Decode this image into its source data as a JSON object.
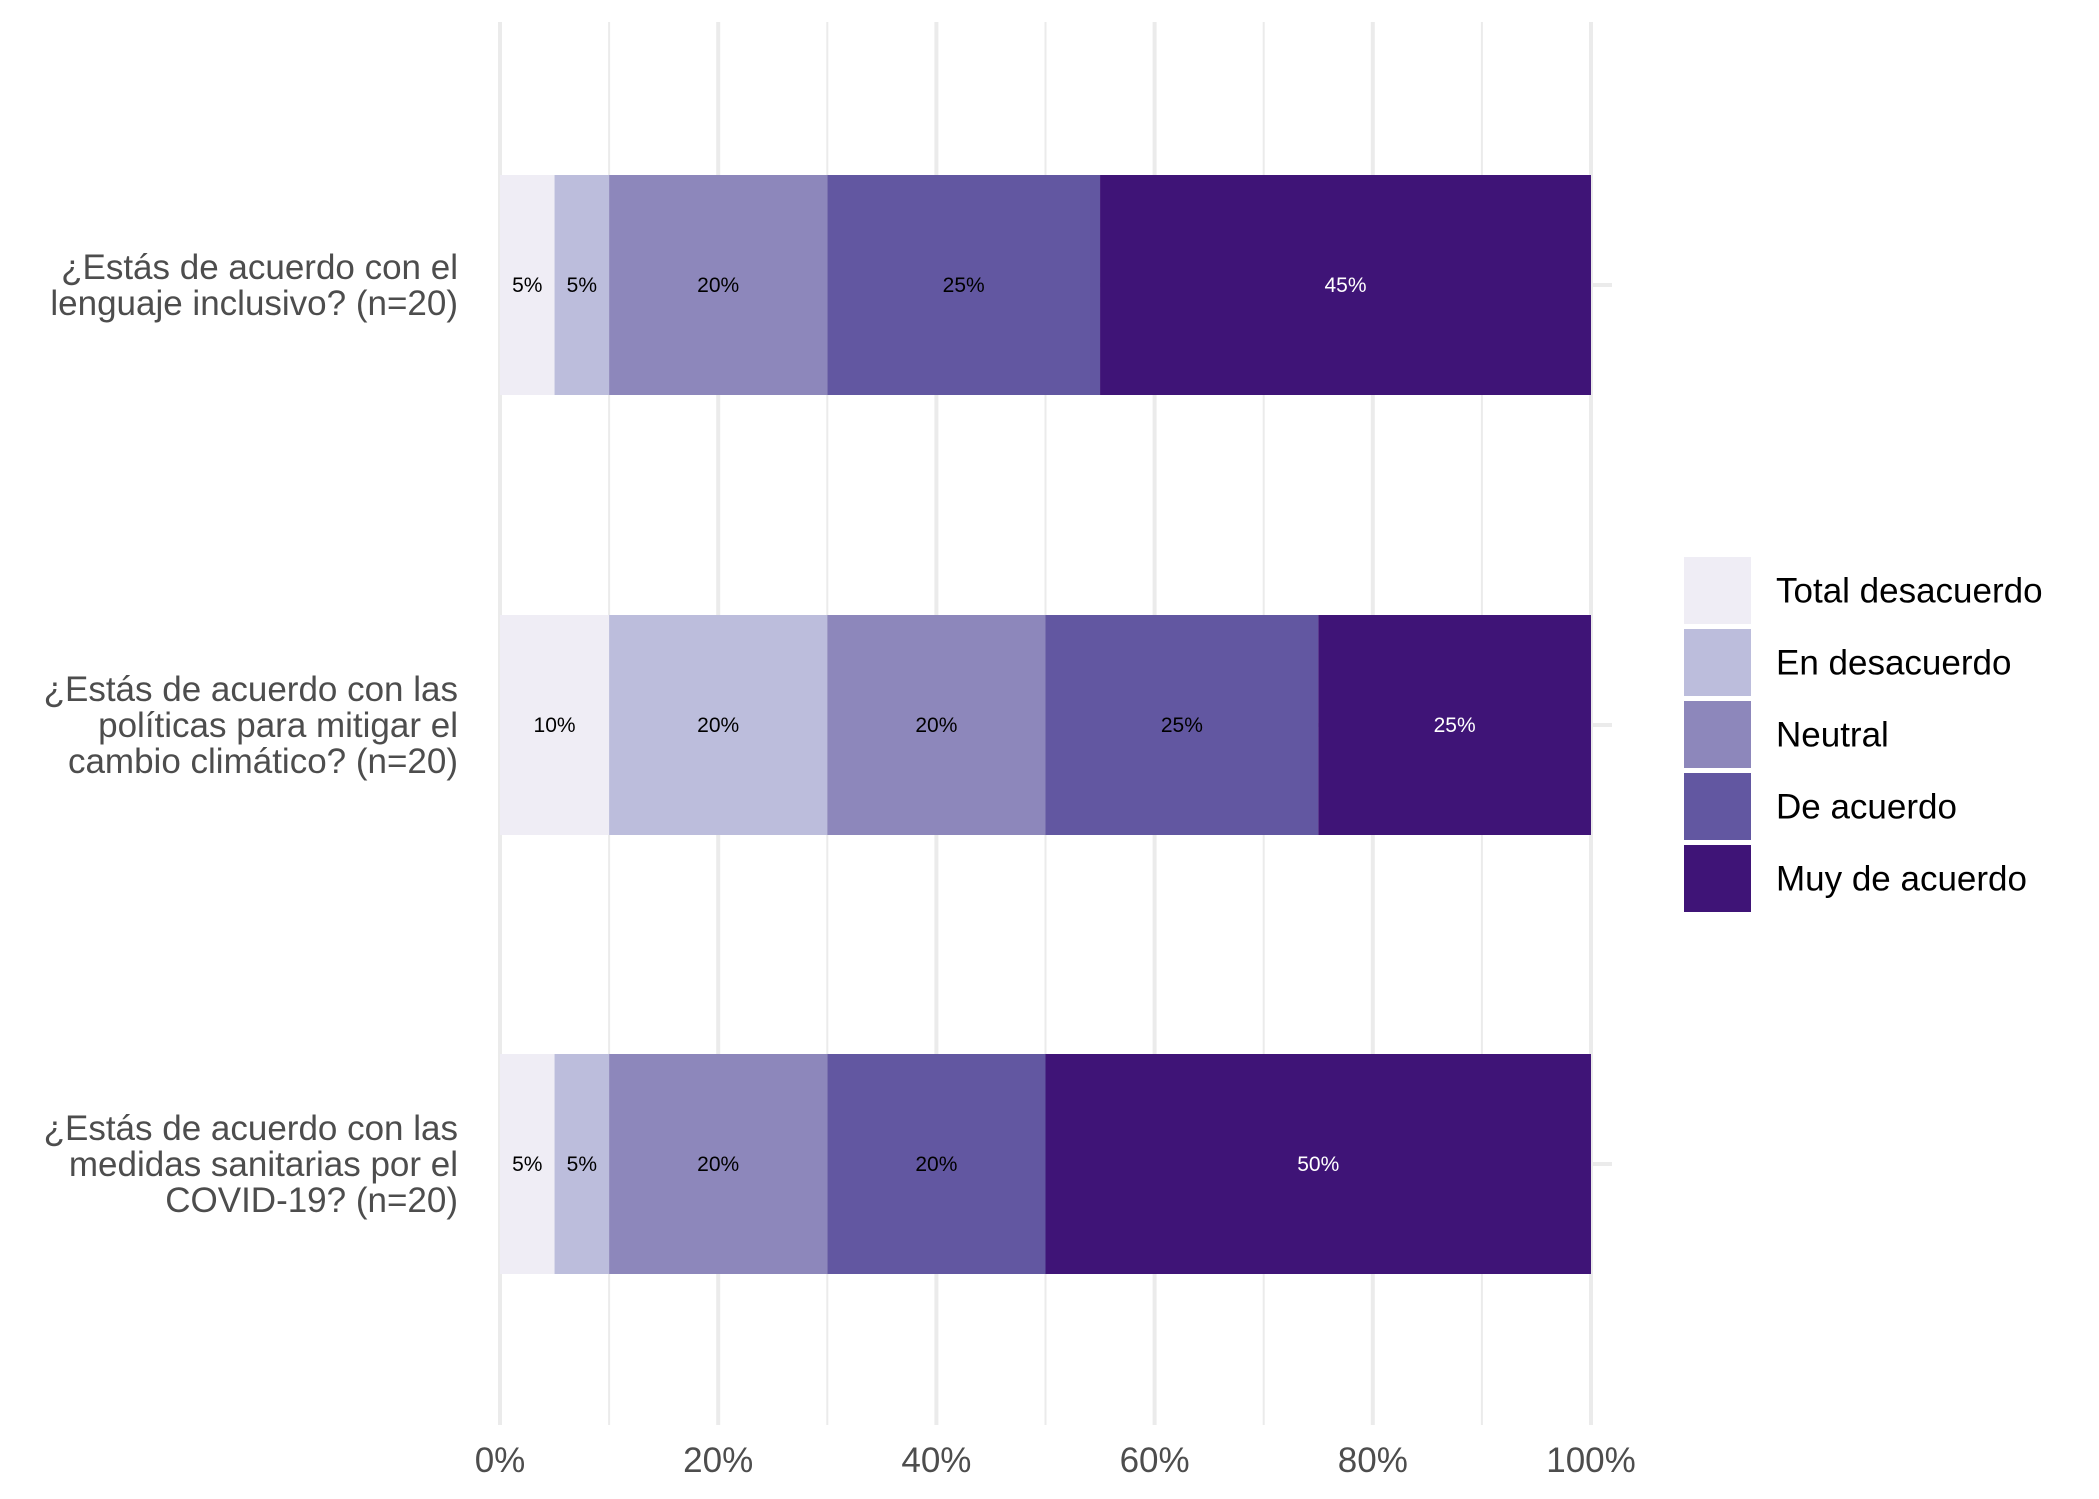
{
  "chart_data": {
    "type": "bar",
    "orientation": "horizontal",
    "stacked": true,
    "normalized_percent": true,
    "title": "",
    "xlabel": "",
    "ylabel": "",
    "xlim": [
      0,
      100
    ],
    "x_ticks": [
      "0%",
      "20%",
      "40%",
      "60%",
      "80%",
      "100%"
    ],
    "grid": true,
    "legend_position": "right",
    "categories": [
      [
        "¿Estás de acuerdo con el",
        "lenguaje inclusivo? (n=20)"
      ],
      [
        "¿Estás de acuerdo con las",
        "políticas para mitigar el",
        "cambio climático? (n=20)"
      ],
      [
        "¿Estás de acuerdo con las",
        "medidas sanitarias por el",
        "COVID-19? (n=20)"
      ]
    ],
    "series": [
      {
        "name": "Total desacuerdo",
        "color": "#efedf5",
        "label_color": "#000000",
        "values": [
          5,
          10,
          5
        ],
        "labels": [
          "5%",
          "10%",
          "5%"
        ]
      },
      {
        "name": "En desacuerdo",
        "color": "#bcbddc",
        "label_color": "#000000",
        "values": [
          5,
          20,
          5
        ],
        "labels": [
          "5%",
          "20%",
          "5%"
        ]
      },
      {
        "name": "Neutral",
        "color": "#8d87bb",
        "label_color": "#000000",
        "values": [
          20,
          20,
          20
        ],
        "labels": [
          "20%",
          "20%",
          "20%"
        ]
      },
      {
        "name": "De acuerdo",
        "color": "#6257a1",
        "label_color": "#000000",
        "values": [
          25,
          25,
          20
        ],
        "labels": [
          "25%",
          "25%",
          "20%"
        ]
      },
      {
        "name": "Muy de acuerdo",
        "color": "#3f1477",
        "label_color": "#ffffff",
        "values": [
          45,
          25,
          50
        ],
        "labels": [
          "45%",
          "25%",
          "50%"
        ]
      }
    ]
  }
}
